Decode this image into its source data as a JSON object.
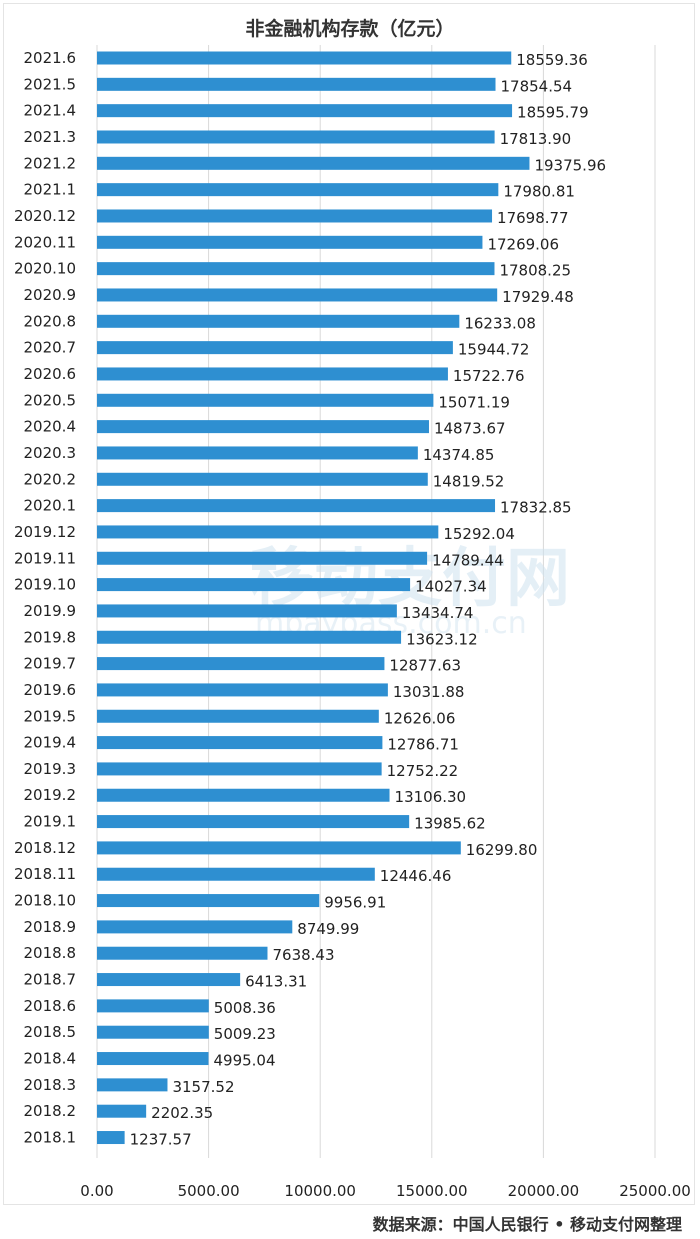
{
  "chart_data": {
    "type": "bar",
    "orientation": "horizontal",
    "title": "非金融机构存款（亿元）",
    "categories": [
      "2021.6",
      "2021.5",
      "2021.4",
      "2021.3",
      "2021.2",
      "2021.1",
      "2020.12",
      "2020.11",
      "2020.10",
      "2020.9",
      "2020.8",
      "2020.7",
      "2020.6",
      "2020.5",
      "2020.4",
      "2020.3",
      "2020.2",
      "2020.1",
      "2019.12",
      "2019.11",
      "2019.10",
      "2019.9",
      "2019.8",
      "2019.7",
      "2019.6",
      "2019.5",
      "2019.4",
      "2019.3",
      "2019.2",
      "2019.1",
      "2018.12",
      "2018.11",
      "2018.10",
      "2018.9",
      "2018.8",
      "2018.7",
      "2018.6",
      "2018.5",
      "2018.4",
      "2018.3",
      "2018.2",
      "2018.1"
    ],
    "values": [
      18559.36,
      17854.54,
      18595.79,
      17813.9,
      19375.96,
      17980.81,
      17698.77,
      17269.06,
      17808.25,
      17929.48,
      16233.08,
      15944.72,
      15722.76,
      15071.19,
      14873.67,
      14374.85,
      14819.52,
      17832.85,
      15292.04,
      14789.44,
      14027.34,
      13434.74,
      13623.12,
      12877.63,
      13031.88,
      12626.06,
      12786.71,
      12752.22,
      13106.3,
      13985.62,
      16299.8,
      12446.46,
      9956.91,
      8749.99,
      7638.43,
      6413.31,
      5008.36,
      5009.23,
      4995.04,
      3157.52,
      2202.35,
      1237.57
    ],
    "value_labels": [
      "18559.36",
      "17854.54",
      "18595.79",
      "17813.90",
      "19375.96",
      "17980.81",
      "17698.77",
      "17269.06",
      "17808.25",
      "17929.48",
      "16233.08",
      "15944.72",
      "15722.76",
      "15071.19",
      "14873.67",
      "14374.85",
      "14819.52",
      "17832.85",
      "15292.04",
      "14789.44",
      "14027.34",
      "13434.74",
      "13623.12",
      "12877.63",
      "13031.88",
      "12626.06",
      "12786.71",
      "12752.22",
      "13106.30",
      "13985.62",
      "16299.80",
      "12446.46",
      "9956.91",
      "8749.99",
      "7638.43",
      "6413.31",
      "5008.36",
      "5009.23",
      "4995.04",
      "3157.52",
      "2202.35",
      "1237.57"
    ],
    "xlim": [
      0,
      25000
    ],
    "xticks": [
      0,
      5000,
      10000,
      15000,
      20000,
      25000
    ],
    "xtick_labels": [
      "0.00",
      "5000.00",
      "10000.00",
      "15000.00",
      "20000.00",
      "25000.00"
    ],
    "grid": "vertical",
    "bar_color": "#2e8fd1"
  },
  "source_text": "数据来源：中国人民银行 • 移动支付网整理",
  "watermark": {
    "title": "移动支付网",
    "url": "mpaypass.com.cn"
  },
  "colors": {
    "grid": "#d9d9d9",
    "text": "#222222",
    "watermark": "#d6e6f2"
  }
}
